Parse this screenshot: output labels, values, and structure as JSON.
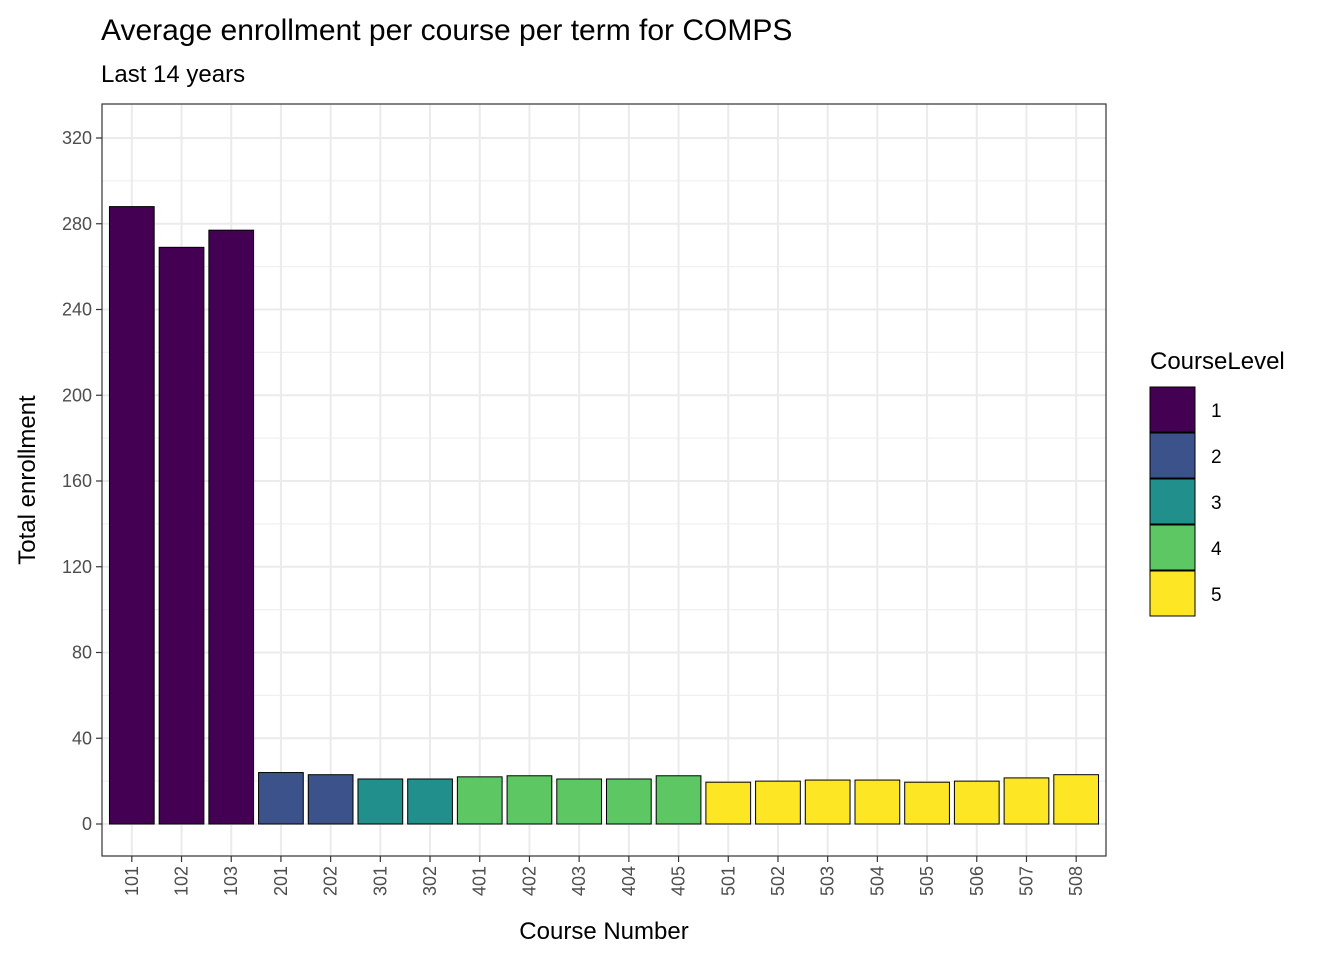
{
  "chart_data": {
    "type": "bar",
    "title": "Average enrollment per course per term for COMPS",
    "subtitle": "Last 14 years",
    "xlabel": "Course Number",
    "ylabel": "Total enrollment",
    "ylim": [
      -15,
      320
    ],
    "yticks": [
      0,
      40,
      80,
      120,
      160,
      200,
      240,
      280,
      320
    ],
    "grid": true,
    "legend": {
      "title": "CourseLevel",
      "placement": "right",
      "items": [
        {
          "label": "1",
          "color": "#440154"
        },
        {
          "label": "2",
          "color": "#3B528B"
        },
        {
          "label": "3",
          "color": "#21908C"
        },
        {
          "label": "4",
          "color": "#5DC863"
        },
        {
          "label": "5",
          "color": "#FDE725"
        }
      ]
    },
    "categories": [
      "101",
      "102",
      "103",
      "201",
      "202",
      "301",
      "302",
      "401",
      "402",
      "403",
      "404",
      "405",
      "501",
      "502",
      "503",
      "504",
      "505",
      "506",
      "507",
      "508"
    ],
    "values": [
      288,
      269,
      277,
      24,
      23,
      21,
      21,
      22,
      22.5,
      21,
      21,
      22.5,
      19.5,
      20,
      20.5,
      20.5,
      19.5,
      20,
      21.5,
      23
    ],
    "levels": [
      "1",
      "1",
      "1",
      "2",
      "2",
      "3",
      "3",
      "4",
      "4",
      "4",
      "4",
      "4",
      "5",
      "5",
      "5",
      "5",
      "5",
      "5",
      "5",
      "5"
    ]
  }
}
